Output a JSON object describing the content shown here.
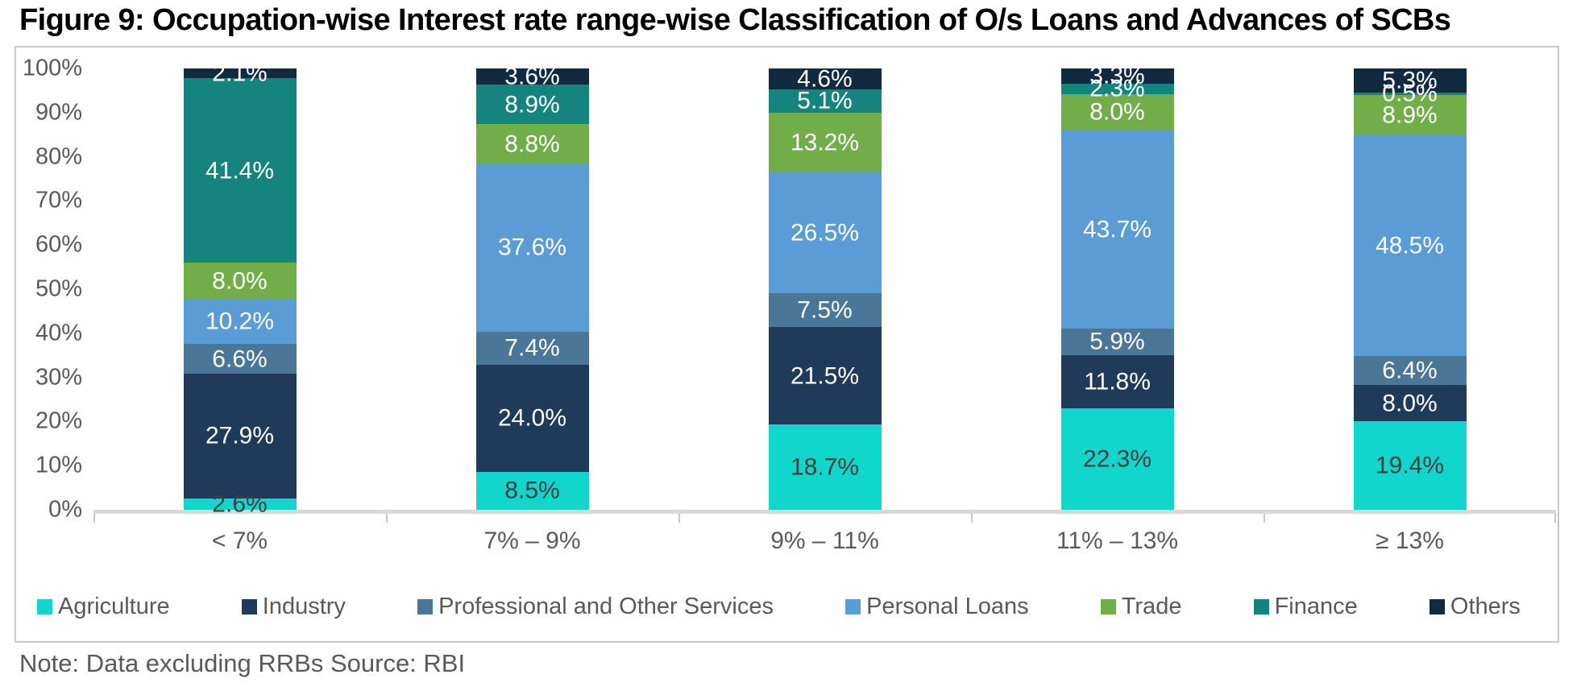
{
  "title": "Figure 9: Occupation-wise Interest rate range-wise Classification of O/s Loans and Advances of SCBs",
  "note": "Note: Data excluding RRBs Source: RBI",
  "chart_data": {
    "type": "bar",
    "variant": "stacked-100-percent",
    "title": "Figure 9: Occupation-wise Interest rate range-wise Classification of O/s Loans and Advances of SCBs",
    "categories": [
      "< 7%",
      "7% – 9%",
      "9% – 11%",
      "11% – 13%",
      "≥ 13%"
    ],
    "series": [
      {
        "name": "Agriculture",
        "color": "#11d6cb",
        "label_color": "#3f3f3f",
        "values": [
          2.6,
          8.5,
          18.7,
          22.3,
          19.4
        ]
      },
      {
        "name": "Industry",
        "color": "#1f3b59",
        "values": [
          27.9,
          24.0,
          21.5,
          11.8,
          8.0
        ]
      },
      {
        "name": "Professional and Other Services",
        "color": "#4a7698",
        "values": [
          6.6,
          7.4,
          7.5,
          5.9,
          6.4
        ]
      },
      {
        "name": "Personal Loans",
        "color": "#5c9cd6",
        "values": [
          10.2,
          37.6,
          26.5,
          43.7,
          48.5
        ]
      },
      {
        "name": "Trade",
        "color": "#71ad48",
        "values": [
          8.0,
          8.8,
          13.2,
          8.0,
          8.9
        ]
      },
      {
        "name": "Finance",
        "color": "#15837e",
        "values": [
          41.4,
          8.9,
          5.1,
          2.3,
          0.5
        ]
      },
      {
        "name": "Others",
        "color": "#122a40",
        "values": [
          2.1,
          3.6,
          4.6,
          3.3,
          5.3
        ]
      }
    ],
    "data_label_format": "{value}%",
    "data_label_default_color": "#ffffff",
    "y_axis": {
      "ticks": [
        "100%",
        "90%",
        "80%",
        "70%",
        "60%",
        "50%",
        "40%",
        "30%",
        "20%",
        "10%",
        "0%"
      ],
      "min": 0,
      "max": 100
    },
    "grid": false,
    "legend_position": "bottom"
  }
}
